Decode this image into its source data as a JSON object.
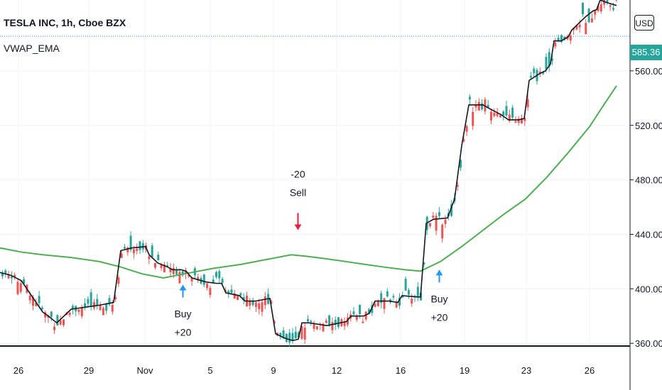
{
  "header": {
    "title": "TESLA INC, 1h, Cboe BZX",
    "indicator_label": "VWAP_EMA",
    "currency": "USD",
    "last_price": "585.36"
  },
  "colors": {
    "up": "#26a69a",
    "down": "#ef5350",
    "ema": "#4caf50",
    "vwap": "#131722",
    "buy": "#2196f3",
    "sell": "#e91e3f",
    "grid": "#f0f3fa"
  },
  "chart_data": {
    "type": "candlestick",
    "title": "TESLA INC, 1h, Cboe BZX",
    "ylim": [
      358,
      612
    ],
    "y_ticks": [
      "360.00",
      "400.00",
      "440.00",
      "480.00",
      "520.00",
      "560.00"
    ],
    "x_ticks": [
      "26",
      "29",
      "Nov",
      "5",
      "9",
      "12",
      "16",
      "19",
      "23",
      "26"
    ],
    "last_price": 585.36,
    "series": [
      {
        "name": "VWAP_EMA",
        "type": "line",
        "color": "#4caf50",
        "points": [
          [
            0,
            430
          ],
          [
            30,
            427
          ],
          [
            60,
            425
          ],
          [
            100,
            423
          ],
          [
            140,
            420
          ],
          [
            170,
            416
          ],
          [
            200,
            411
          ],
          [
            230,
            408
          ],
          [
            260,
            411
          ],
          [
            300,
            415
          ],
          [
            340,
            418
          ],
          [
            380,
            422
          ],
          [
            410,
            425
          ],
          [
            430,
            424
          ],
          [
            460,
            422
          ],
          [
            500,
            419
          ],
          [
            540,
            416
          ],
          [
            570,
            414
          ],
          [
            592,
            413
          ],
          [
            620,
            420
          ],
          [
            650,
            431
          ],
          [
            680,
            443
          ],
          [
            710,
            455
          ],
          [
            740,
            466
          ],
          [
            770,
            482
          ],
          [
            800,
            500
          ],
          [
            830,
            519
          ],
          [
            850,
            535
          ],
          [
            868,
            549
          ]
        ]
      },
      {
        "name": "VWAP",
        "type": "line",
        "color": "#131722",
        "points": [
          [
            0,
            412
          ],
          [
            15,
            410
          ],
          [
            30,
            406
          ],
          [
            60,
            383
          ],
          [
            68,
            380
          ],
          [
            80,
            375
          ],
          [
            100,
            385
          ],
          [
            140,
            388
          ],
          [
            160,
            390
          ],
          [
            170,
            428
          ],
          [
            185,
            430
          ],
          [
            205,
            431
          ],
          [
            210,
            425
          ],
          [
            222,
            419
          ],
          [
            236,
            416
          ],
          [
            243,
            414
          ],
          [
            255,
            414
          ],
          [
            262,
            413
          ],
          [
            270,
            408
          ],
          [
            290,
            405
          ],
          [
            305,
            404
          ],
          [
            312,
            404
          ],
          [
            318,
            397
          ],
          [
            337,
            395
          ],
          [
            345,
            391
          ],
          [
            360,
            391
          ],
          [
            380,
            393
          ],
          [
            388,
            367
          ],
          [
            400,
            364
          ],
          [
            412,
            362
          ],
          [
            420,
            363
          ],
          [
            425,
            375
          ],
          [
            435,
            375
          ],
          [
            448,
            374
          ],
          [
            460,
            373
          ],
          [
            488,
            376
          ],
          [
            494,
            380
          ],
          [
            512,
            380
          ],
          [
            520,
            382
          ],
          [
            528,
            391
          ],
          [
            548,
            391
          ],
          [
            560,
            390
          ],
          [
            566,
            395
          ],
          [
            588,
            394
          ],
          [
            592,
            394
          ],
          [
            600,
            448
          ],
          [
            610,
            451
          ],
          [
            630,
            452
          ],
          [
            640,
            466
          ],
          [
            650,
            505
          ],
          [
            660,
            535
          ],
          [
            670,
            535
          ],
          [
            680,
            535
          ],
          [
            690,
            532
          ],
          [
            705,
            528
          ],
          [
            716,
            524
          ],
          [
            730,
            524
          ],
          [
            738,
            525
          ],
          [
            745,
            553
          ],
          [
            760,
            558
          ],
          [
            768,
            560
          ],
          [
            775,
            565
          ],
          [
            780,
            582
          ],
          [
            790,
            582
          ],
          [
            800,
            585
          ],
          [
            805,
            590
          ],
          [
            815,
            595
          ],
          [
            825,
            600
          ],
          [
            835,
            604
          ],
          [
            840,
            605
          ],
          [
            845,
            612
          ],
          [
            855,
            610
          ],
          [
            868,
            608
          ]
        ]
      }
    ],
    "markers": [
      {
        "label": "Buy",
        "value": "+20",
        "type": "buy",
        "x": 257.5,
        "price": 402
      },
      {
        "label": "Sell",
        "value": "-20",
        "type": "sell",
        "x": 419.5,
        "price": 440
      },
      {
        "label": "Buy",
        "value": "+20",
        "type": "buy",
        "x": 618.5,
        "price": 413
      }
    ]
  }
}
